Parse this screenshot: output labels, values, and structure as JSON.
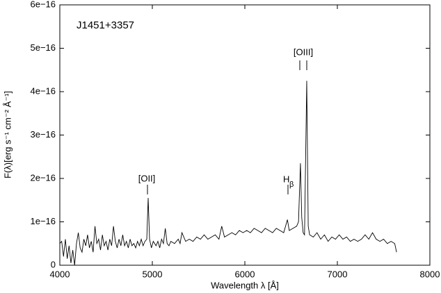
{
  "chart_data": {
    "type": "line",
    "title": "J1451+3357",
    "x_label": "Wavelength λ [Å]",
    "y_label": "F(λ)[erg s⁻¹ cm⁻² Å⁻¹]",
    "annotations": [
      "[OII]",
      "H",
      "β",
      "[OIII]"
    ],
    "xlim": [
      4000,
      8000
    ],
    "xticks": [
      4000,
      5000,
      6000,
      7000,
      8000
    ],
    "ylim": [
      0,
      6e-16
    ],
    "yticks": [
      0,
      {
        "value": 1e-16,
        "label": "1e−16"
      },
      {
        "value": 2e-16,
        "label": "2e−16"
      },
      {
        "value": 3e-16,
        "label": "3e−16"
      },
      {
        "value": 4e-16,
        "label": "4e−16"
      },
      {
        "value": 5e-16,
        "label": "5e−16"
      },
      {
        "value": 6e-16,
        "label": "6e−16"
      }
    ],
    "x": [
      4000,
      4020,
      4040,
      4060,
      4080,
      4100,
      4120,
      4140,
      4160,
      4180,
      4200,
      4220,
      4240,
      4260,
      4280,
      4300,
      4320,
      4340,
      4360,
      4380,
      4400,
      4420,
      4440,
      4460,
      4480,
      4500,
      4520,
      4540,
      4560,
      4580,
      4600,
      4620,
      4640,
      4660,
      4680,
      4700,
      4720,
      4740,
      4760,
      4780,
      4800,
      4820,
      4840,
      4860,
      4880,
      4900,
      4920,
      4940,
      4955,
      4970,
      4990,
      5010,
      5040,
      5060,
      5080,
      5100,
      5120,
      5140,
      5160,
      5180,
      5200,
      5240,
      5280,
      5300,
      5320,
      5360,
      5400,
      5440,
      5480,
      5520,
      5560,
      5600,
      5640,
      5680,
      5720,
      5750,
      5780,
      5820,
      5860,
      5900,
      5940,
      5980,
      6020,
      6060,
      6100,
      6140,
      6180,
      6220,
      6260,
      6300,
      6340,
      6380,
      6420,
      6460,
      6480,
      6520,
      6560,
      6580,
      6601,
      6615,
      6630,
      6645,
      6669,
      6685,
      6700,
      6740,
      6780,
      6820,
      6860,
      6900,
      6940,
      6980,
      7020,
      7060,
      7100,
      7140,
      7180,
      7220,
      7260,
      7300,
      7340,
      7380,
      7420,
      7460,
      7500,
      7540,
      7580,
      7620,
      7640
    ],
    "series": [
      {
        "color": "#000000",
        "values": [
          5e-17,
          5.5e-17,
          2e-17,
          6e-17,
          1.5e-17,
          4.5e-17,
          5e-18,
          3.5e-17,
          0.0,
          5e-17,
          7.5e-17,
          4e-17,
          3e-17,
          6e-17,
          4.5e-17,
          7e-17,
          4e-17,
          5.5e-17,
          3e-17,
          9e-17,
          5e-17,
          6e-17,
          3.5e-17,
          7e-17,
          4.5e-17,
          5.5e-17,
          3.5e-17,
          6e-17,
          4.5e-17,
          9e-17,
          5.5e-17,
          4e-17,
          6e-17,
          4.5e-17,
          7e-17,
          4.5e-17,
          5.5e-17,
          4e-17,
          6e-17,
          4.5e-17,
          5e-17,
          4e-17,
          5.5e-17,
          4.5e-17,
          6e-17,
          4.5e-17,
          5.5e-17,
          6e-17,
          1.55e-16,
          6e-17,
          4e-17,
          5.5e-17,
          4.5e-17,
          5.5e-17,
          4e-17,
          6e-17,
          5e-17,
          8.5e-17,
          5e-17,
          4.5e-17,
          5.5e-17,
          5e-17,
          6e-17,
          5e-17,
          7.5e-17,
          5.5e-17,
          6e-17,
          5.5e-17,
          6.5e-17,
          6e-17,
          7e-17,
          6e-17,
          6.5e-17,
          7e-17,
          6e-17,
          9e-17,
          6.5e-17,
          7e-17,
          7.5e-17,
          7e-17,
          8e-17,
          7.5e-17,
          8e-17,
          7.5e-17,
          8.5e-17,
          8e-17,
          7.5e-17,
          8.5e-17,
          8e-17,
          7.5e-17,
          8.5e-17,
          8e-17,
          7.5e-17,
          1.05e-16,
          8e-17,
          8.5e-17,
          9e-17,
          1e-16,
          2.35e-16,
          1.1e-16,
          7.5e-17,
          7e-17,
          4.25e-16,
          9e-17,
          7e-17,
          6.5e-17,
          7.5e-17,
          6e-17,
          7e-17,
          5.5e-17,
          6.5e-17,
          6e-17,
          7e-17,
          6e-17,
          6.5e-17,
          5.5e-17,
          6e-17,
          5.5e-17,
          6e-17,
          7e-17,
          6e-17,
          7.5e-17,
          6e-17,
          5.5e-17,
          6e-17,
          5e-17,
          5.5e-17,
          5e-17,
          3e-17
        ]
      }
    ]
  }
}
